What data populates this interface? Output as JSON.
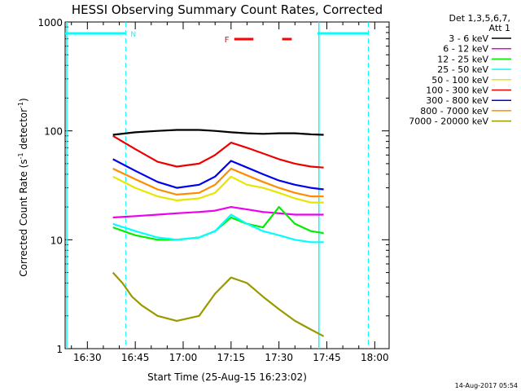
{
  "chart_data": {
    "type": "line",
    "title": "HESSI Observing Summary Count Rates, Corrected",
    "xlabel": "Start Time (25-Aug-15 16:23:02)",
    "ylabel_main": "Corrected Count Rate (s",
    "ylabel_sup1": "-1",
    "ylabel_mid": " detector",
    "ylabel_sup2": "-1",
    "ylabel_end": ")",
    "y_scale": "log",
    "ylim": [
      1,
      1000
    ],
    "xlim": [
      "16:23:02",
      "18:04:30"
    ],
    "x_ticks": [
      "16:30",
      "16:45",
      "17:00",
      "17:15",
      "17:30",
      "17:45",
      "18:00"
    ],
    "y_ticks": [
      "1",
      "10",
      "100",
      "1000"
    ],
    "legend_header": [
      "Det 1,3,5,6,7,",
      "Att 1"
    ],
    "legend_position": "right",
    "series": [
      {
        "name": "3 - 6 keV",
        "color": "#000000",
        "x": [
          "16:38",
          "16:45",
          "16:52",
          "16:58",
          "17:05",
          "17:10",
          "17:15",
          "17:20",
          "17:25",
          "17:30",
          "17:35",
          "17:40",
          "17:44"
        ],
        "y": [
          92,
          97,
          100,
          102,
          102,
          100,
          97,
          95,
          94,
          95,
          95,
          93,
          92
        ]
      },
      {
        "name": "6 - 12 keV",
        "color": "#ee00ee",
        "x": [
          "16:38",
          "16:45",
          "16:52",
          "16:58",
          "17:05",
          "17:10",
          "17:15",
          "17:20",
          "17:25",
          "17:30",
          "17:35",
          "17:40",
          "17:44"
        ],
        "y": [
          16,
          16.5,
          17,
          17.5,
          18,
          18.5,
          20,
          19,
          18,
          17.5,
          17,
          17,
          17
        ]
      },
      {
        "name": "12 - 25 keV",
        "color": "#00ee00",
        "x": [
          "16:38",
          "16:45",
          "16:52",
          "16:58",
          "17:05",
          "17:10",
          "17:15",
          "17:20",
          "17:25",
          "17:30",
          "17:35",
          "17:40",
          "17:44"
        ],
        "y": [
          13,
          11,
          10,
          10,
          10.5,
          12,
          16,
          14,
          13,
          20,
          14,
          12,
          11.5
        ]
      },
      {
        "name": "25 - 50 keV",
        "color": "#00ffff",
        "x": [
          "16:38",
          "16:45",
          "16:52",
          "16:58",
          "17:05",
          "17:10",
          "17:15",
          "17:20",
          "17:25",
          "17:30",
          "17:35",
          "17:40",
          "17:44"
        ],
        "y": [
          14,
          12,
          10.5,
          10,
          10.5,
          12,
          17,
          14,
          12,
          11,
          10,
          9.5,
          9.5
        ]
      },
      {
        "name": "50 - 100 keV",
        "color": "#e6e600",
        "x": [
          "16:38",
          "16:45",
          "16:52",
          "16:58",
          "17:05",
          "17:10",
          "17:15",
          "17:20",
          "17:25",
          "17:30",
          "17:35",
          "17:40",
          "17:44"
        ],
        "y": [
          38,
          30,
          25,
          23,
          24,
          27,
          38,
          32,
          30,
          27,
          24,
          22,
          22
        ]
      },
      {
        "name": "100 - 300 keV",
        "color": "#ee0000",
        "x": [
          "16:38",
          "16:45",
          "16:52",
          "16:58",
          "17:05",
          "17:10",
          "17:15",
          "17:20",
          "17:25",
          "17:30",
          "17:35",
          "17:40",
          "17:44"
        ],
        "y": [
          90,
          68,
          52,
          47,
          50,
          60,
          78,
          70,
          62,
          55,
          50,
          47,
          46
        ]
      },
      {
        "name": "300 - 800 keV",
        "color": "#0000ee",
        "x": [
          "16:38",
          "16:45",
          "16:52",
          "16:58",
          "17:05",
          "17:10",
          "17:15",
          "17:20",
          "17:25",
          "17:30",
          "17:35",
          "17:40",
          "17:44"
        ],
        "y": [
          55,
          43,
          34,
          30,
          32,
          38,
          53,
          46,
          40,
          35,
          32,
          30,
          29
        ]
      },
      {
        "name": "800 - 7000 keV",
        "color": "#ff8c00",
        "x": [
          "16:38",
          "16:45",
          "16:52",
          "16:58",
          "17:05",
          "17:10",
          "17:15",
          "17:20",
          "17:25",
          "17:30",
          "17:35",
          "17:40",
          "17:44"
        ],
        "y": [
          45,
          36,
          29,
          26,
          27,
          32,
          45,
          39,
          34,
          30,
          27,
          25,
          25
        ]
      },
      {
        "name": "7000 - 20000 keV",
        "color": "#999900",
        "x": [
          "16:38",
          "16:41",
          "16:44",
          "16:47",
          "16:52",
          "16:58",
          "17:05",
          "17:10",
          "17:15",
          "17:20",
          "17:25",
          "17:30",
          "17:35",
          "17:40",
          "17:44"
        ],
        "y": [
          5,
          4,
          3,
          2.5,
          2,
          1.8,
          2,
          3.2,
          4.5,
          4,
          3,
          2.3,
          1.8,
          1.5,
          1.3
        ]
      }
    ],
    "flare_flag": {
      "label": "F",
      "segments": [
        [
          "17:16",
          "17:22"
        ],
        [
          "17:31",
          "17:34"
        ]
      ]
    },
    "night_marker_label": "N",
    "spacecraft_night": [
      [
        "16:23",
        "16:42"
      ],
      [
        "17:42",
        "17:58"
      ]
    ],
    "colors": {
      "cyan_marker": "#00ffff",
      "flag_red": "#ff0000"
    }
  },
  "footer": {
    "timestamp": "14-Aug-2017 05:54"
  }
}
